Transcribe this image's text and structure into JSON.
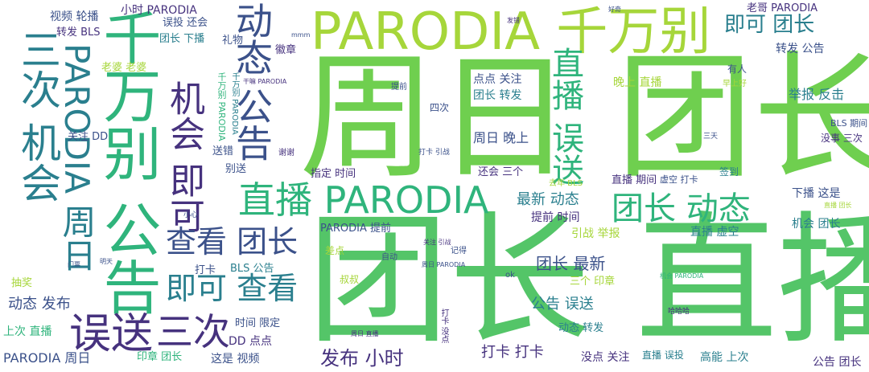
{
  "cloud": {
    "palette": [
      "#6fcf4f",
      "#a6d63a",
      "#2fb47c",
      "#2a7f8e",
      "#3b518a",
      "#46327e",
      "#cfe11c"
    ],
    "words": [
      {
        "text": "周日 团长",
        "color": "#6fcf4f"
      },
      {
        "text": "团长 直播",
        "color": "#54c568"
      },
      {
        "text": "PARODIA 千万别",
        "color": "#a6d63a"
      },
      {
        "text": "三次 机会",
        "color": "#2a7f8e"
      },
      {
        "text": "PARODIA 周日",
        "color": "#2a7f8e"
      },
      {
        "text": "千万别 公告",
        "color": "#2fb47c"
      },
      {
        "text": "机会 即可",
        "color": "#46327e"
      },
      {
        "text": "动态 公告",
        "color": "#3b518a"
      },
      {
        "text": "误送",
        "color": "#46327e"
      },
      {
        "text": "三次",
        "color": "#46327e"
      },
      {
        "text": "直播 PARODIA",
        "color": "#2fb47c"
      },
      {
        "text": "查看 团长",
        "color": "#3b518a"
      },
      {
        "text": "即可 查看",
        "color": "#2a7f8e"
      },
      {
        "text": "直播 误送",
        "color": "#2fb47c"
      },
      {
        "text": "团长 动态",
        "color": "#2fb47c"
      },
      {
        "text": "即可 团长",
        "color": "#2a7f8e"
      },
      {
        "text": "周日 晚上",
        "color": "#3b518a"
      },
      {
        "text": "点点 关注",
        "color": "#3b518a"
      },
      {
        "text": "团长 转发",
        "color": "#2a7f8e"
      },
      {
        "text": "晚上 直播",
        "color": "#a6d63a"
      },
      {
        "text": "举报 反击",
        "color": "#2a7f8e"
      },
      {
        "text": "转发 公告",
        "color": "#3b518a"
      },
      {
        "text": "最新 动态",
        "color": "#2a7f8e"
      },
      {
        "text": "团长 最新",
        "color": "#3b518a"
      },
      {
        "text": "公告 误送",
        "color": "#2a7f8e"
      },
      {
        "text": "发布 小时",
        "color": "#46327e"
      },
      {
        "text": "打卡 打卡",
        "color": "#46327e"
      },
      {
        "text": "动态 发布",
        "color": "#3b518a"
      },
      {
        "text": "时间 限定",
        "color": "#3b518a"
      },
      {
        "text": "PARODIA 周日",
        "color": "#3b518a"
      },
      {
        "text": "直播 期间",
        "color": "#46327e"
      },
      {
        "text": "下播 这是",
        "color": "#3b518a"
      },
      {
        "text": "机会 团长",
        "color": "#2a7f8e"
      },
      {
        "text": "直播 虚空",
        "color": "#2a7f8e"
      },
      {
        "text": "提前 时间",
        "color": "#46327e"
      },
      {
        "text": "引战 举报",
        "color": "#a6d63a"
      },
      {
        "text": "PARODIA 提前",
        "color": "#3b518a"
      },
      {
        "text": "指定 时间",
        "color": "#46327e"
      },
      {
        "text": "还会 三个",
        "color": "#46327e"
      },
      {
        "text": "三个 印章",
        "color": "#a6d63a"
      },
      {
        "text": "动态 转发",
        "color": "#2a7f8e"
      },
      {
        "text": "没点 关注",
        "color": "#46327e"
      },
      {
        "text": "直播 误投",
        "color": "#2a7f8e"
      },
      {
        "text": "高能 上次",
        "color": "#2a7f8e"
      },
      {
        "text": "公告 团长",
        "color": "#46327e"
      },
      {
        "text": "这是 视频",
        "color": "#3b518a"
      },
      {
        "text": "印章 团长",
        "color": "#2fb47c"
      },
      {
        "text": "上次 直播",
        "color": "#2fb47c"
      },
      {
        "text": "抽奖",
        "color": "#a6d63a"
      },
      {
        "text": "DD 点点",
        "color": "#46327e"
      },
      {
        "text": "BLS 公告",
        "color": "#2a7f8e"
      },
      {
        "text": "打卡",
        "color": "#3b518a"
      },
      {
        "text": "视频 轮播",
        "color": "#3b518a"
      },
      {
        "text": "小时 PARODIA",
        "color": "#46327e"
      },
      {
        "text": "转发 BLS",
        "color": "#46327e"
      },
      {
        "text": "误投 还会",
        "color": "#3b518a"
      },
      {
        "text": "团长 下播",
        "color": "#2a7f8e"
      },
      {
        "text": "老婆 老婆",
        "color": "#a6d63a"
      },
      {
        "text": "礼物",
        "color": "#3b518a"
      },
      {
        "text": "徽章",
        "color": "#46327e"
      },
      {
        "text": "老哥 PARODIA",
        "color": "#46327e"
      },
      {
        "text": "关注 DD",
        "color": "#3b518a"
      },
      {
        "text": "送错",
        "color": "#3b518a"
      },
      {
        "text": "别送",
        "color": "#3b518a"
      },
      {
        "text": "签到",
        "color": "#2a7f8e"
      },
      {
        "text": "有人",
        "color": "#3b518a"
      },
      {
        "text": "没事 三次",
        "color": "#46327e"
      },
      {
        "text": "BLS 期间",
        "color": "#3b518a"
      },
      {
        "text": "四次",
        "color": "#3b518a"
      },
      {
        "text": "提前",
        "color": "#3b518a"
      },
      {
        "text": "谢谢",
        "color": "#46327e"
      },
      {
        "text": "差点",
        "color": "#a6d63a"
      },
      {
        "text": "叔叔",
        "color": "#a6d63a"
      },
      {
        "text": "自动",
        "color": "#3b518a"
      },
      {
        "text": "记得",
        "color": "#3b518a"
      },
      {
        "text": "ok",
        "color": "#3b518a"
      },
      {
        "text": "虚空 打卡",
        "color": "#3b518a"
      },
      {
        "text": "去年 BLS",
        "color": "#a6d63a"
      },
      {
        "text": "早上好",
        "color": "#a6d63a"
      },
      {
        "text": "三天",
        "color": "#3b518a"
      },
      {
        "text": "千万别 PARODIA",
        "color": "#2fb47c"
      },
      {
        "text": "千万别 PARODIA",
        "color": "#2a7f8e"
      },
      {
        "text": "干嘛 PARODIA",
        "color": "#46327e"
      },
      {
        "text": "周日 PARODIA",
        "color": "#3b518a"
      },
      {
        "text": "打卡 引战",
        "color": "#3b518a"
      },
      {
        "text": "打卡 没点",
        "color": "#46327e"
      },
      {
        "text": "直播 团长",
        "color": "#a6d63a"
      },
      {
        "text": "周日 直播",
        "color": "#46327e"
      },
      {
        "text": "机会 PARODIA",
        "color": "#2fb47c"
      },
      {
        "text": "哈哈哈",
        "color": "#46327e"
      },
      {
        "text": "门票",
        "color": "#3b518a"
      },
      {
        "text": "明天",
        "color": "#3b518a"
      },
      {
        "text": "小心",
        "color": "#3b518a"
      },
      {
        "text": "好奇",
        "color": "#3b518a"
      },
      {
        "text": "发错",
        "color": "#46327e"
      },
      {
        "text": "mmm",
        "color": "#3b518a"
      },
      {
        "text": "关注 引战",
        "color": "#46327e"
      }
    ]
  }
}
